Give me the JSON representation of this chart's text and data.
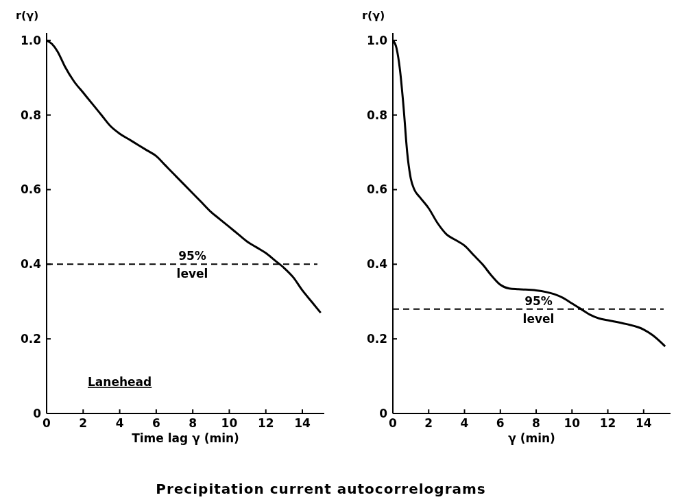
{
  "chart_data": [
    {
      "type": "line",
      "ylabel": "r(γ)",
      "xlabel": "Time lag γ (min)",
      "xlim": [
        0,
        15.2
      ],
      "ylim": [
        0,
        1.02
      ],
      "xticks": [
        0,
        2,
        4,
        6,
        8,
        10,
        12,
        14
      ],
      "yticks": [
        0,
        0.2,
        0.4,
        0.6,
        0.8,
        {
          "value": 1,
          "label": "1.0"
        }
      ],
      "grid": false,
      "marker": "none",
      "line_style": "solid",
      "series": [
        {
          "color": "#000000",
          "x": [
            0,
            0.3,
            0.6,
            1,
            1.5,
            2,
            2.5,
            3,
            3.5,
            4,
            4.5,
            5,
            5.5,
            6,
            6.5,
            7,
            7.5,
            8,
            8.5,
            9,
            9.5,
            10,
            10.5,
            11,
            11.5,
            12,
            12.5,
            13,
            13.5,
            14,
            14.5,
            15
          ],
          "values": [
            1.0,
            0.99,
            0.97,
            0.93,
            0.89,
            0.86,
            0.83,
            0.8,
            0.77,
            0.75,
            0.735,
            0.72,
            0.705,
            0.69,
            0.665,
            0.64,
            0.615,
            0.59,
            0.565,
            0.54,
            0.52,
            0.5,
            0.48,
            0.46,
            0.445,
            0.43,
            0.41,
            0.39,
            0.365,
            0.33,
            0.3,
            0.27
          ]
        }
      ],
      "ref_lines": [
        {
          "axis": "y",
          "value": 0.4,
          "label": "95% level",
          "color": "#000000",
          "line_style": "dashed"
        }
      ],
      "title": "Precipitation current autocorrelograms",
      "annotations": [
        "Lanehead"
      ]
    },
    {
      "type": "line",
      "ylabel": "r(γ)",
      "xlabel": "γ (min)",
      "xlim": [
        0,
        15.5
      ],
      "ylim": [
        0,
        1.02
      ],
      "xticks": [
        0,
        2,
        4,
        6,
        8,
        10,
        12,
        14
      ],
      "yticks": [
        0,
        0.2,
        0.4,
        0.6,
        0.8,
        {
          "value": 1,
          "label": "1.0"
        }
      ],
      "grid": false,
      "marker": "none",
      "line_style": "solid",
      "series": [
        {
          "color": "#000000",
          "x": [
            0,
            0.2,
            0.4,
            0.6,
            0.8,
            1,
            1.2,
            1.5,
            2,
            2.5,
            3,
            3.5,
            4,
            4.5,
            5,
            5.5,
            6,
            6.5,
            7,
            8,
            9,
            9.5,
            10,
            10.5,
            11,
            11.5,
            12,
            13,
            14,
            14.5,
            15.2
          ],
          "values": [
            1.0,
            0.98,
            0.92,
            0.82,
            0.7,
            0.63,
            0.6,
            0.58,
            0.55,
            0.51,
            0.48,
            0.465,
            0.45,
            0.425,
            0.4,
            0.37,
            0.345,
            0.335,
            0.333,
            0.33,
            0.32,
            0.31,
            0.295,
            0.28,
            0.265,
            0.255,
            0.25,
            0.24,
            0.225,
            0.21,
            0.18
          ]
        }
      ],
      "ref_lines": [
        {
          "axis": "y",
          "value": 0.28,
          "label": "95% level",
          "color": "#000000",
          "line_style": "dashed"
        }
      ]
    }
  ]
}
